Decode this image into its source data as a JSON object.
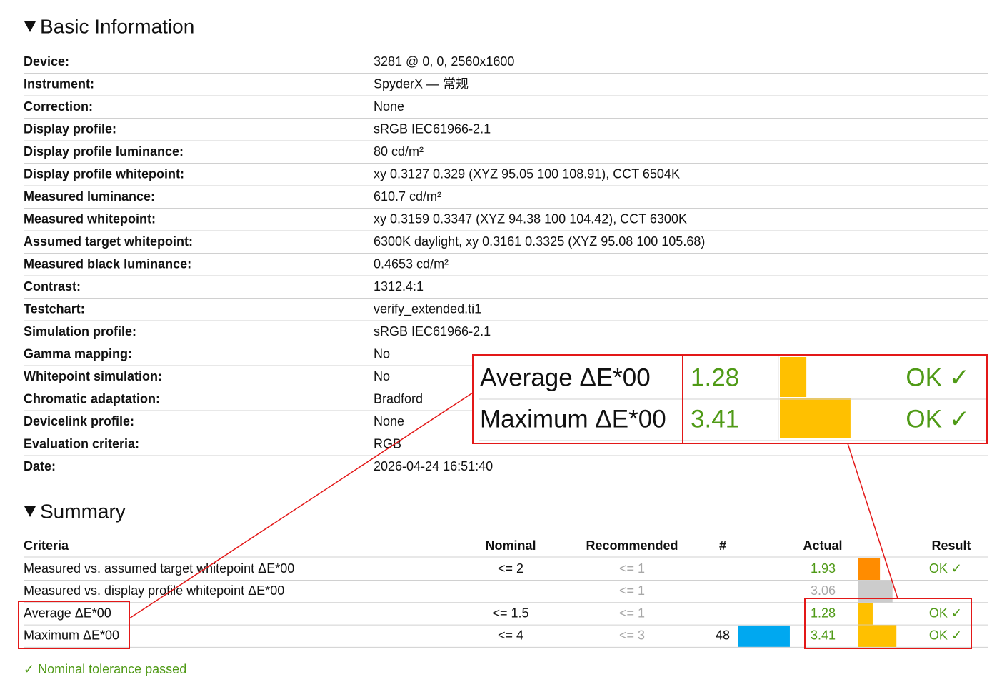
{
  "basic": {
    "title": "Basic Information",
    "rows": [
      [
        "Device:",
        "3281 @ 0, 0, 2560x1600"
      ],
      [
        "Instrument:",
        "SpyderX — 常规"
      ],
      [
        "Correction:",
        "None"
      ],
      [
        "Display profile:",
        "sRGB IEC61966-2.1"
      ],
      [
        "Display profile luminance:",
        "80 cd/m²"
      ],
      [
        "Display profile whitepoint:",
        "xy 0.3127 0.329 (XYZ 95.05 100 108.91), CCT 6504K"
      ],
      [
        "Measured luminance:",
        "610.7 cd/m²"
      ],
      [
        "Measured whitepoint:",
        "xy 0.3159 0.3347 (XYZ 94.38 100 104.42), CCT 6300K"
      ],
      [
        "Assumed target whitepoint:",
        "6300K daylight, xy 0.3161 0.3325 (XYZ 95.08 100 105.68)"
      ],
      [
        "Measured black luminance:",
        "0.4653 cd/m²"
      ],
      [
        "Contrast:",
        "1312.4:1"
      ],
      [
        "Testchart:",
        "verify_extended.ti1"
      ],
      [
        "Simulation profile:",
        "sRGB IEC61966-2.1"
      ],
      [
        "Gamma mapping:",
        "No"
      ],
      [
        "Whitepoint simulation:",
        "No"
      ],
      [
        "Chromatic adaptation:",
        "Bradford"
      ],
      [
        "Devicelink profile:",
        "None"
      ],
      [
        "Evaluation criteria:",
        "RGB"
      ],
      [
        "Date:",
        "2026-04-24 16:51:40"
      ]
    ]
  },
  "summary": {
    "title": "Summary",
    "header": [
      "Criteria",
      "Nominal",
      "Recommended",
      "#",
      "Actual",
      "Result"
    ],
    "count_color": "#00a8f0",
    "rows": [
      {
        "criteria": "Measured vs. assumed target whitepoint ΔE*00",
        "nominal": "<= 2",
        "recommended": "<= 1",
        "actual": 1.93,
        "bar_color": "#ff8c00",
        "result": "OK ✓"
      },
      {
        "criteria": "Measured vs. display profile whitepoint ΔE*00",
        "recommended": "<= 1",
        "actual": 3.06,
        "bar_color": "#cccccc"
      },
      {
        "criteria": "Average ΔE*00",
        "nominal": "<= 1.5",
        "recommended": "<= 1",
        "actual": 1.28,
        "bar_color": "#ffc000",
        "result": "OK ✓"
      },
      {
        "criteria": "Maximum ΔE*00",
        "nominal": "<= 4",
        "recommended": "<= 3",
        "count": 48,
        "actual": 3.41,
        "bar_color": "#ffc000",
        "result": "OK ✓"
      }
    ]
  },
  "footer": "✓ Nominal tolerance passed"
}
